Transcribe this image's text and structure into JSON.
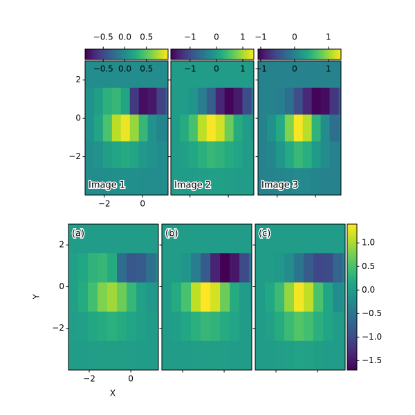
{
  "chart_data": {
    "type": "image-grid",
    "xlabel": "X",
    "ylabel": "Y",
    "cmap": "viridis",
    "extent": [
      -3,
      1.67,
      -4,
      3
    ],
    "xlim": [
      -3,
      1.33
    ],
    "ylim": [
      -4,
      3
    ],
    "xticks": [
      {
        "value": -2,
        "label": "−2"
      },
      0
    ],
    "yticks": [
      2,
      0,
      {
        "value": -2,
        "label": "−2"
      }
    ],
    "shared_clim": [
      -1.7,
      1.4
    ],
    "shared_cticks": [
      {
        "value": 1,
        "label": "1.0"
      },
      {
        "value": 0.5,
        "label": "0.5"
      },
      {
        "value": 0,
        "label": "0.0"
      },
      {
        "value": -0.5,
        "label": "−0.5"
      },
      {
        "value": -1,
        "label": "−1.0"
      },
      {
        "value": -1.5,
        "label": "−1.5"
      }
    ],
    "images": [
      {
        "label": "Image 1",
        "tag": "(a)",
        "clim": [
          -0.92,
          1.0
        ],
        "cticks": [
          {
            "value": -0.5,
            "label": "−0.5"
          },
          {
            "value": 0,
            "label": "0.0"
          },
          {
            "value": 0.5,
            "label": "0.5"
          }
        ],
        "z": [
          [
            0,
            0,
            0,
            0,
            0,
            0,
            0,
            0,
            0,
            0
          ],
          [
            0.05,
            0.15,
            0.3,
            0.35,
            0.2,
            -0.6,
            -0.85,
            -0.8,
            -0.55,
            -0.3
          ],
          [
            0.05,
            0.2,
            0.45,
            0.8,
            0.95,
            0.7,
            0.35,
            0.05,
            -0.05,
            -0.05
          ],
          [
            0.02,
            0.05,
            0.15,
            0.2,
            0.25,
            0.2,
            0.1,
            0.05,
            0,
            0
          ],
          [
            0,
            0,
            0.02,
            0.03,
            0.03,
            0.03,
            0.02,
            0,
            0,
            0
          ]
        ]
      },
      {
        "label": "Image 2",
        "tag": "(b)",
        "clim": [
          -1.73,
          1.42
        ],
        "cticks": [
          {
            "value": -1,
            "label": "−1"
          },
          0,
          1
        ],
        "z": [
          [
            0,
            0,
            0,
            0,
            0,
            0,
            0,
            0,
            0,
            0
          ],
          [
            0,
            0,
            -0.1,
            -0.4,
            -0.8,
            -1.4,
            -1.7,
            -1.5,
            -1.0,
            -0.5
          ],
          [
            0,
            0.2,
            0.5,
            1.1,
            1.4,
            1.2,
            0.7,
            0.2,
            0,
            -0.1
          ],
          [
            0,
            0.05,
            0.15,
            0.25,
            0.35,
            0.3,
            0.2,
            0.1,
            0,
            0
          ],
          [
            0,
            0,
            0,
            0.02,
            0.03,
            0.03,
            0.02,
            0,
            0,
            0
          ]
        ]
      },
      {
        "label": "Image 3",
        "tag": "(c)",
        "clim": [
          -1.08,
          1.37
        ],
        "cticks": [
          {
            "value": -1,
            "label": "−1"
          },
          0,
          1
        ],
        "z": [
          [
            0,
            0,
            0,
            0,
            0,
            0,
            0,
            0,
            0,
            0
          ],
          [
            0,
            0,
            -0.05,
            -0.2,
            -0.5,
            -0.8,
            -1.05,
            -1.0,
            -0.7,
            -0.4
          ],
          [
            0,
            0.15,
            0.4,
            0.9,
            1.35,
            1.1,
            0.5,
            0.1,
            -0.2,
            -0.1
          ],
          [
            0,
            0.05,
            0.2,
            0.4,
            0.55,
            0.45,
            0.25,
            0.1,
            0,
            0
          ],
          [
            0,
            0,
            0.02,
            0.05,
            0.08,
            0.06,
            0.03,
            0,
            0,
            0
          ]
        ]
      }
    ]
  }
}
